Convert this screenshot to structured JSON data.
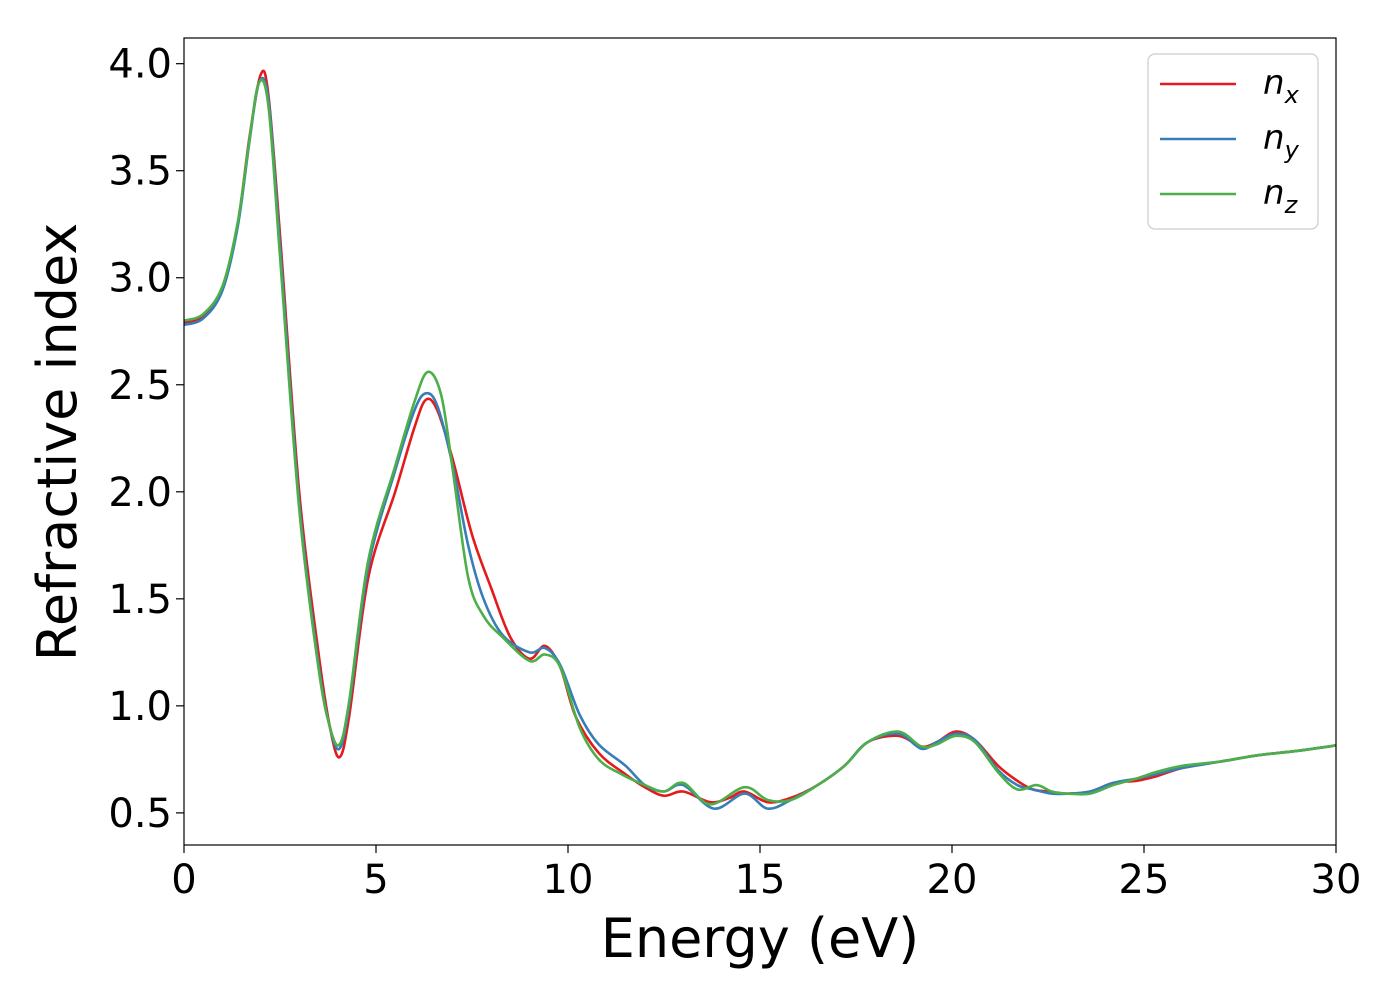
{
  "chart_data": {
    "type": "line",
    "xlabel": "Energy (eV)",
    "ylabel": "Refractive index",
    "xlim": [
      0,
      30
    ],
    "ylim": [
      0.35,
      4.12
    ],
    "x_ticks": [
      "0",
      "5",
      "10",
      "15",
      "20",
      "25",
      "30"
    ],
    "y_ticks": [
      "0.5",
      "1.0",
      "1.5",
      "2.0",
      "2.5",
      "3.0",
      "3.5",
      "4.0"
    ],
    "grid": false,
    "legend_position": "top-right",
    "series": [
      {
        "name": "n_x",
        "label_main": "n",
        "label_sub": "x",
        "color": "#e41a1c",
        "points": [
          [
            0,
            2.79
          ],
          [
            0.5,
            2.82
          ],
          [
            1.0,
            2.95
          ],
          [
            1.4,
            3.25
          ],
          [
            1.7,
            3.65
          ],
          [
            2.0,
            3.95
          ],
          [
            2.2,
            3.85
          ],
          [
            2.5,
            3.2
          ],
          [
            3.0,
            2.0
          ],
          [
            3.5,
            1.25
          ],
          [
            3.8,
            0.9
          ],
          [
            4.05,
            0.76
          ],
          [
            4.3,
            0.95
          ],
          [
            4.8,
            1.6
          ],
          [
            5.5,
            2.0
          ],
          [
            6.0,
            2.3
          ],
          [
            6.3,
            2.43
          ],
          [
            6.6,
            2.38
          ],
          [
            7.0,
            2.15
          ],
          [
            7.5,
            1.8
          ],
          [
            8.0,
            1.55
          ],
          [
            8.5,
            1.32
          ],
          [
            9.0,
            1.22
          ],
          [
            9.4,
            1.28
          ],
          [
            9.8,
            1.18
          ],
          [
            10.2,
            0.95
          ],
          [
            10.8,
            0.78
          ],
          [
            11.5,
            0.68
          ],
          [
            12.0,
            0.62
          ],
          [
            12.5,
            0.58
          ],
          [
            13.0,
            0.6
          ],
          [
            13.7,
            0.55
          ],
          [
            14.2,
            0.57
          ],
          [
            14.6,
            0.6
          ],
          [
            15.2,
            0.55
          ],
          [
            15.8,
            0.57
          ],
          [
            16.5,
            0.63
          ],
          [
            17.2,
            0.72
          ],
          [
            17.8,
            0.83
          ],
          [
            18.6,
            0.86
          ],
          [
            19.2,
            0.81
          ],
          [
            19.6,
            0.83
          ],
          [
            20.1,
            0.88
          ],
          [
            20.6,
            0.84
          ],
          [
            21.2,
            0.72
          ],
          [
            21.7,
            0.65
          ],
          [
            22.1,
            0.61
          ],
          [
            22.5,
            0.6
          ],
          [
            23.0,
            0.59
          ],
          [
            23.6,
            0.6
          ],
          [
            24.2,
            0.64
          ],
          [
            24.8,
            0.65
          ],
          [
            25.3,
            0.67
          ],
          [
            26.0,
            0.71
          ],
          [
            27.0,
            0.74
          ],
          [
            28.0,
            0.77
          ],
          [
            29.0,
            0.79
          ],
          [
            30.0,
            0.815
          ]
        ]
      },
      {
        "name": "n_y",
        "label_main": "n",
        "label_sub": "y",
        "color": "#377eb8",
        "points": [
          [
            0,
            2.78
          ],
          [
            0.5,
            2.81
          ],
          [
            1.0,
            2.94
          ],
          [
            1.4,
            3.24
          ],
          [
            1.7,
            3.63
          ],
          [
            1.95,
            3.91
          ],
          [
            2.2,
            3.83
          ],
          [
            2.5,
            3.15
          ],
          [
            3.0,
            1.95
          ],
          [
            3.5,
            1.2
          ],
          [
            3.8,
            0.9
          ],
          [
            4.05,
            0.8
          ],
          [
            4.3,
            1.0
          ],
          [
            4.8,
            1.65
          ],
          [
            5.5,
            2.1
          ],
          [
            6.0,
            2.38
          ],
          [
            6.3,
            2.46
          ],
          [
            6.6,
            2.4
          ],
          [
            7.0,
            2.12
          ],
          [
            7.4,
            1.75
          ],
          [
            7.8,
            1.5
          ],
          [
            8.3,
            1.33
          ],
          [
            9.0,
            1.25
          ],
          [
            9.4,
            1.27
          ],
          [
            9.8,
            1.19
          ],
          [
            10.3,
            0.96
          ],
          [
            10.8,
            0.82
          ],
          [
            11.5,
            0.72
          ],
          [
            12.0,
            0.63
          ],
          [
            12.5,
            0.6
          ],
          [
            13.0,
            0.63
          ],
          [
            13.8,
            0.52
          ],
          [
            14.6,
            0.59
          ],
          [
            15.2,
            0.52
          ],
          [
            15.8,
            0.56
          ],
          [
            16.5,
            0.63
          ],
          [
            17.2,
            0.72
          ],
          [
            17.8,
            0.83
          ],
          [
            18.6,
            0.87
          ],
          [
            19.2,
            0.8
          ],
          [
            19.6,
            0.83
          ],
          [
            20.1,
            0.87
          ],
          [
            20.6,
            0.84
          ],
          [
            21.2,
            0.7
          ],
          [
            21.7,
            0.63
          ],
          [
            22.1,
            0.61
          ],
          [
            22.6,
            0.59
          ],
          [
            23.0,
            0.59
          ],
          [
            23.6,
            0.6
          ],
          [
            24.2,
            0.64
          ],
          [
            24.8,
            0.66
          ],
          [
            25.3,
            0.68
          ],
          [
            26.0,
            0.71
          ],
          [
            27.0,
            0.74
          ],
          [
            28.0,
            0.77
          ],
          [
            29.0,
            0.79
          ],
          [
            30.0,
            0.815
          ]
        ]
      },
      {
        "name": "n_z",
        "label_main": "n",
        "label_sub": "z",
        "color": "#4daf4a",
        "points": [
          [
            0,
            2.8
          ],
          [
            0.5,
            2.83
          ],
          [
            1.0,
            2.96
          ],
          [
            1.4,
            3.26
          ],
          [
            1.7,
            3.64
          ],
          [
            1.95,
            3.91
          ],
          [
            2.2,
            3.8
          ],
          [
            2.5,
            3.1
          ],
          [
            3.0,
            1.92
          ],
          [
            3.5,
            1.18
          ],
          [
            3.8,
            0.9
          ],
          [
            4.05,
            0.82
          ],
          [
            4.3,
            1.02
          ],
          [
            4.8,
            1.68
          ],
          [
            5.5,
            2.12
          ],
          [
            6.0,
            2.42
          ],
          [
            6.35,
            2.56
          ],
          [
            6.7,
            2.45
          ],
          [
            7.0,
            2.1
          ],
          [
            7.4,
            1.6
          ],
          [
            7.8,
            1.42
          ],
          [
            8.3,
            1.32
          ],
          [
            9.0,
            1.21
          ],
          [
            9.4,
            1.24
          ],
          [
            9.8,
            1.18
          ],
          [
            10.3,
            0.9
          ],
          [
            10.8,
            0.75
          ],
          [
            11.4,
            0.68
          ],
          [
            12.0,
            0.63
          ],
          [
            12.5,
            0.6
          ],
          [
            13.0,
            0.64
          ],
          [
            13.7,
            0.54
          ],
          [
            14.6,
            0.62
          ],
          [
            15.2,
            0.56
          ],
          [
            15.8,
            0.56
          ],
          [
            16.5,
            0.63
          ],
          [
            17.2,
            0.72
          ],
          [
            17.8,
            0.83
          ],
          [
            18.6,
            0.88
          ],
          [
            19.2,
            0.81
          ],
          [
            19.6,
            0.82
          ],
          [
            20.1,
            0.86
          ],
          [
            20.6,
            0.83
          ],
          [
            21.2,
            0.69
          ],
          [
            21.7,
            0.61
          ],
          [
            22.2,
            0.63
          ],
          [
            22.6,
            0.6
          ],
          [
            23.0,
            0.59
          ],
          [
            23.6,
            0.59
          ],
          [
            24.2,
            0.63
          ],
          [
            24.8,
            0.66
          ],
          [
            25.3,
            0.69
          ],
          [
            26.0,
            0.72
          ],
          [
            27.0,
            0.74
          ],
          [
            28.0,
            0.77
          ],
          [
            29.0,
            0.79
          ],
          [
            30.0,
            0.815
          ]
        ]
      }
    ]
  }
}
